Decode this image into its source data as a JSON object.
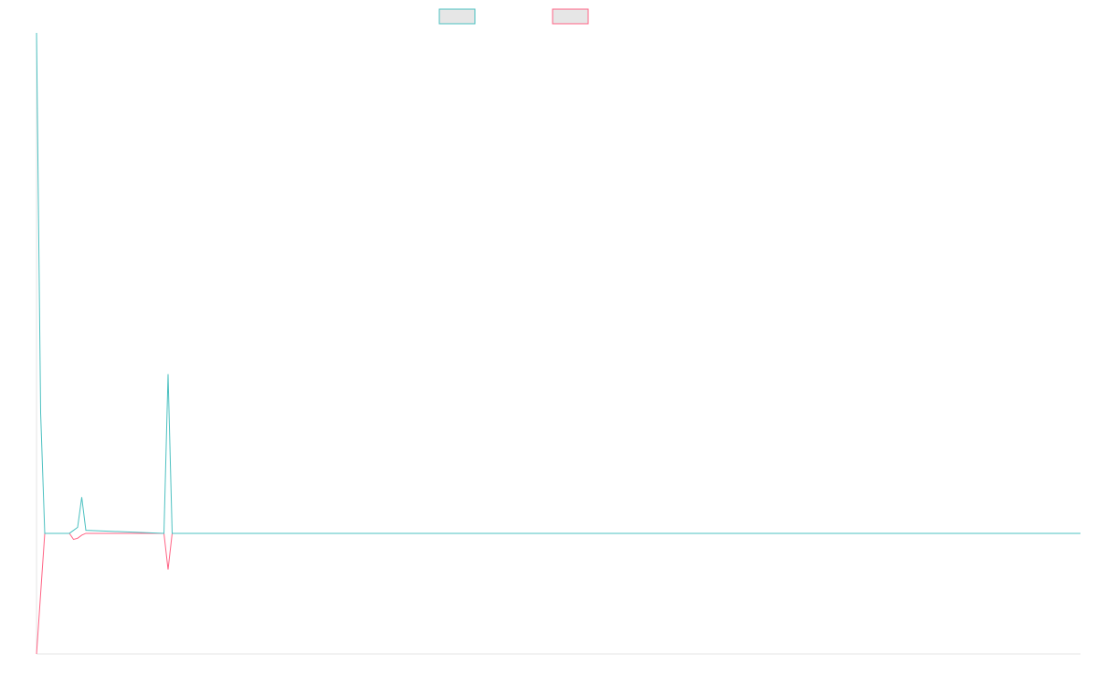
{
  "chart_data": {
    "type": "line",
    "x": [
      0,
      1,
      2,
      8,
      9,
      10,
      11,
      12,
      31,
      32,
      33,
      254
    ],
    "xlim": [
      0,
      254
    ],
    "ylim": [
      -2,
      8.3
    ],
    "series": [
      {
        "color": "#4bc0c0",
        "values": [
          8.3,
          2,
          0,
          0,
          0.05,
          0.1,
          0.6,
          0.05,
          0,
          2.64,
          0,
          0
        ]
      },
      {
        "color": "#ff6384",
        "values": [
          -2,
          -1,
          0,
          0,
          -0.1,
          -0.08,
          -0.03,
          0,
          0,
          -0.6,
          0,
          0
        ]
      }
    ]
  }
}
